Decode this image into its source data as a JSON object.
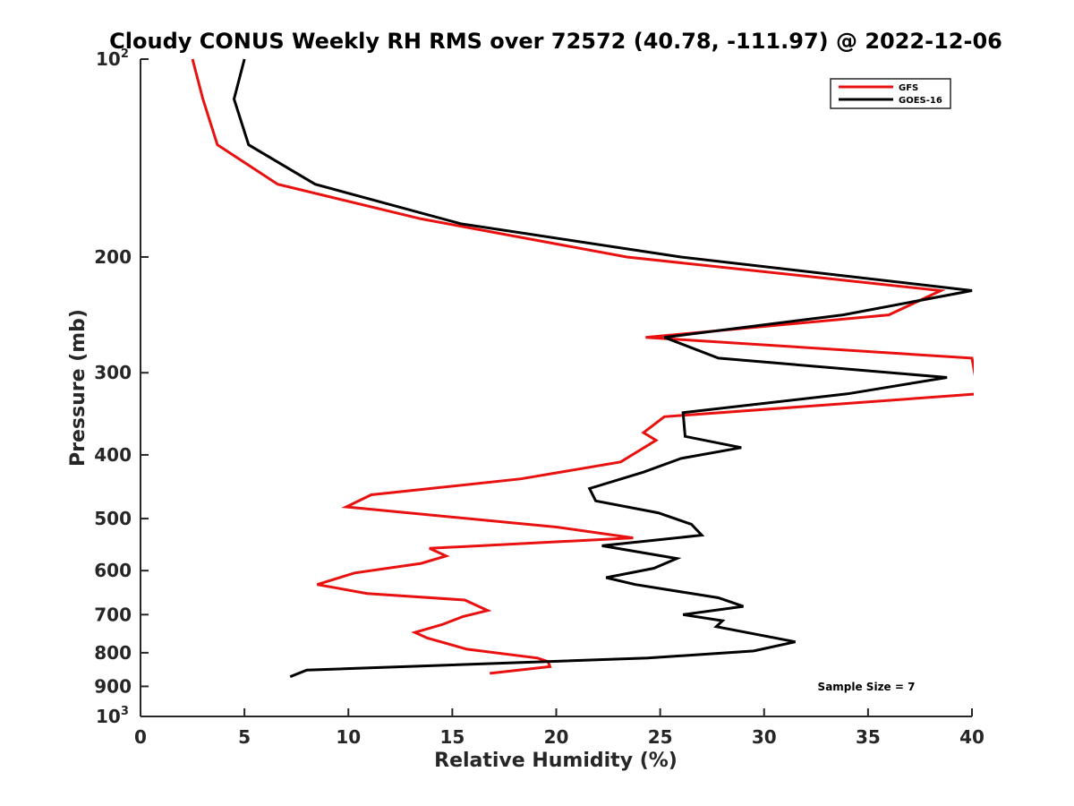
{
  "chart_data": {
    "type": "line",
    "title": "Cloudy CONUS Weekly RH RMS over 72572 (40.78, -111.97) @ 2022-12-06",
    "xlabel": "Relative Humidity (%)",
    "ylabel": "Pressure (mb)",
    "xlim": [
      0,
      40
    ],
    "ylim": [
      100,
      1000
    ],
    "yscale": "log",
    "y_reversed": true,
    "grid": false,
    "legend_position": "top-right",
    "annotation": "Sample Size = 7",
    "xticks": [
      "0",
      "5",
      "10",
      "15",
      "20",
      "25",
      "30",
      "35",
      "40"
    ],
    "yticks": [
      {
        "value": 100,
        "base": "10",
        "exp": "2"
      },
      {
        "value": 200,
        "label": "200"
      },
      {
        "value": 300,
        "label": "300"
      },
      {
        "value": 400,
        "label": "400"
      },
      {
        "value": 500,
        "label": "500"
      },
      {
        "value": 600,
        "label": "600"
      },
      {
        "value": 700,
        "label": "700"
      },
      {
        "value": 800,
        "label": "800"
      },
      {
        "value": 900,
        "label": "900"
      },
      {
        "value": 1000,
        "base": "10",
        "exp": "3"
      }
    ],
    "series": [
      {
        "name": "GFS",
        "color": "#e8110f",
        "points": [
          {
            "x": 2.5,
            "y": 100
          },
          {
            "x": 3.0,
            "y": 115
          },
          {
            "x": 3.7,
            "y": 135
          },
          {
            "x": 6.6,
            "y": 155
          },
          {
            "x": 13.5,
            "y": 175
          },
          {
            "x": 23.4,
            "y": 200
          },
          {
            "x": 38.5,
            "y": 225
          },
          {
            "x": 36.0,
            "y": 245
          },
          {
            "x": 24.3,
            "y": 265
          },
          {
            "x": 40.0,
            "y": 285
          },
          {
            "x": 40.3,
            "y": 323
          },
          {
            "x": 25.2,
            "y": 350
          },
          {
            "x": 24.2,
            "y": 370
          },
          {
            "x": 24.8,
            "y": 380
          },
          {
            "x": 23.1,
            "y": 410
          },
          {
            "x": 18.3,
            "y": 435
          },
          {
            "x": 11.1,
            "y": 460
          },
          {
            "x": 9.9,
            "y": 480
          },
          {
            "x": 20.0,
            "y": 515
          },
          {
            "x": 23.7,
            "y": 535
          },
          {
            "x": 13.9,
            "y": 555
          },
          {
            "x": 14.7,
            "y": 570
          },
          {
            "x": 13.5,
            "y": 585
          },
          {
            "x": 10.3,
            "y": 605
          },
          {
            "x": 8.5,
            "y": 630
          },
          {
            "x": 10.9,
            "y": 650
          },
          {
            "x": 15.6,
            "y": 665
          },
          {
            "x": 16.7,
            "y": 690
          },
          {
            "x": 15.5,
            "y": 705
          },
          {
            "x": 14.5,
            "y": 725
          },
          {
            "x": 13.2,
            "y": 745
          },
          {
            "x": 13.8,
            "y": 760
          },
          {
            "x": 15.7,
            "y": 790
          },
          {
            "x": 19.1,
            "y": 815
          },
          {
            "x": 19.6,
            "y": 825
          },
          {
            "x": 19.7,
            "y": 840
          },
          {
            "x": 16.8,
            "y": 860
          }
        ]
      },
      {
        "name": "GOES-16",
        "color": "#000000",
        "points": [
          {
            "x": 5.0,
            "y": 100
          },
          {
            "x": 4.5,
            "y": 115
          },
          {
            "x": 5.2,
            "y": 135
          },
          {
            "x": 8.4,
            "y": 155
          },
          {
            "x": 15.4,
            "y": 178
          },
          {
            "x": 26.0,
            "y": 200
          },
          {
            "x": 40.0,
            "y": 225
          },
          {
            "x": 33.8,
            "y": 245
          },
          {
            "x": 25.2,
            "y": 265
          },
          {
            "x": 27.8,
            "y": 285
          },
          {
            "x": 38.8,
            "y": 305
          },
          {
            "x": 34.0,
            "y": 323
          },
          {
            "x": 26.1,
            "y": 345
          },
          {
            "x": 26.2,
            "y": 375
          },
          {
            "x": 28.9,
            "y": 390
          },
          {
            "x": 26.0,
            "y": 405
          },
          {
            "x": 24.2,
            "y": 425
          },
          {
            "x": 21.6,
            "y": 450
          },
          {
            "x": 21.9,
            "y": 470
          },
          {
            "x": 24.9,
            "y": 490
          },
          {
            "x": 26.5,
            "y": 510
          },
          {
            "x": 27.0,
            "y": 530
          },
          {
            "x": 22.2,
            "y": 550
          },
          {
            "x": 25.8,
            "y": 575
          },
          {
            "x": 24.7,
            "y": 595
          },
          {
            "x": 22.4,
            "y": 615
          },
          {
            "x": 23.8,
            "y": 630
          },
          {
            "x": 27.8,
            "y": 660
          },
          {
            "x": 29.0,
            "y": 680
          },
          {
            "x": 26.1,
            "y": 700
          },
          {
            "x": 28.0,
            "y": 715
          },
          {
            "x": 27.7,
            "y": 730
          },
          {
            "x": 31.5,
            "y": 770
          },
          {
            "x": 29.5,
            "y": 795
          },
          {
            "x": 24.4,
            "y": 815
          },
          {
            "x": 8.0,
            "y": 850
          },
          {
            "x": 7.2,
            "y": 870
          }
        ]
      }
    ]
  }
}
